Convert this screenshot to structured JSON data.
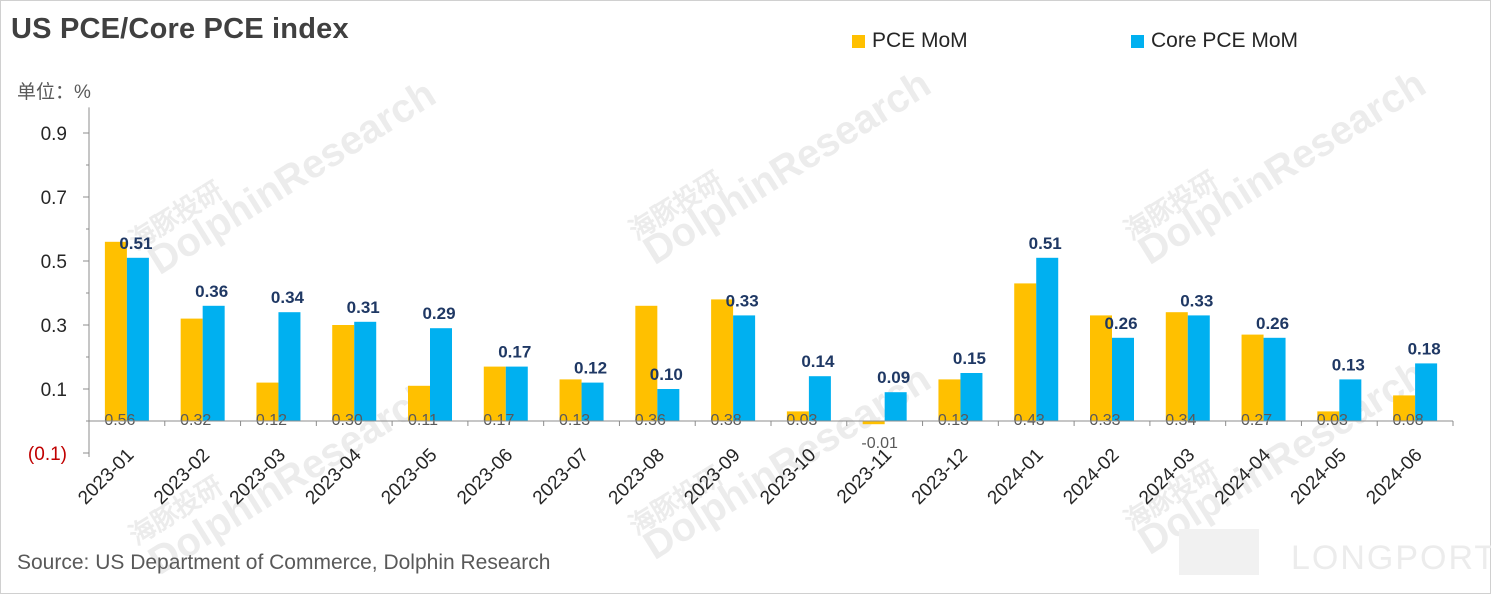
{
  "title": "US PCE/Core PCE index",
  "unit_label": "单位：%",
  "source": "Source: US Department of Commerce, Dolphin Research",
  "watermarks": {
    "cn": "海豚投研",
    "en": "DolphinResearch",
    "brand": "LONGPORT"
  },
  "colors": {
    "pce": "#FFC000",
    "core": "#00B0F0",
    "axis_text": "#262626",
    "neg_tick": "#C00000",
    "core_label": "#1F3864",
    "pce_label": "#595959"
  },
  "chart_data": {
    "type": "bar",
    "title": "US PCE/Core PCE index",
    "ylabel": "单位：%",
    "xlabel": "",
    "ylim": [
      -0.1,
      1.0
    ],
    "yticks": [
      {
        "value": 0.9,
        "label": "0.9"
      },
      {
        "value": 0.7,
        "label": "0.7"
      },
      {
        "value": 0.5,
        "label": "0.5"
      },
      {
        "value": 0.3,
        "label": "0.3"
      },
      {
        "value": 0.1,
        "label": "0.1"
      },
      {
        "value": -0.1,
        "label": "(0.1)"
      }
    ],
    "legend_position": "top-right",
    "grid": false,
    "categories": [
      "2023-01",
      "2023-02",
      "2023-03",
      "2023-04",
      "2023-05",
      "2023-06",
      "2023-07",
      "2023-08",
      "2023-09",
      "2023-10",
      "2023-11",
      "2023-12",
      "2024-01",
      "2024-02",
      "2024-03",
      "2024-04",
      "2024-05",
      "2024-06"
    ],
    "series": [
      {
        "name": "PCE MoM",
        "values": [
          0.56,
          0.32,
          0.12,
          0.3,
          0.11,
          0.17,
          0.13,
          0.36,
          0.38,
          0.03,
          -0.01,
          0.13,
          0.43,
          0.33,
          0.34,
          0.27,
          0.03,
          0.08
        ],
        "labels": [
          "0.56",
          "0.32",
          "0.12",
          "0.30",
          "0.11",
          "0.17",
          "0.13",
          "0.36",
          "0.38",
          "0.03",
          "-0.01",
          "0.13",
          "0.43",
          "0.33",
          "0.34",
          "0.27",
          "0.03",
          "0.08"
        ]
      },
      {
        "name": "Core PCE MoM",
        "values": [
          0.51,
          0.36,
          0.34,
          0.31,
          0.29,
          0.17,
          0.12,
          0.1,
          0.33,
          0.14,
          0.09,
          0.15,
          0.51,
          0.26,
          0.33,
          0.26,
          0.13,
          0.18
        ],
        "labels": [
          "0.51",
          "0.36",
          "0.34",
          "0.31",
          "0.29",
          "0.17",
          "0.12",
          "0.10",
          "0.33",
          "0.14",
          "0.09",
          "0.15",
          "0.51",
          "0.26",
          "0.33",
          "0.26",
          "0.13",
          "0.18"
        ]
      }
    ]
  }
}
